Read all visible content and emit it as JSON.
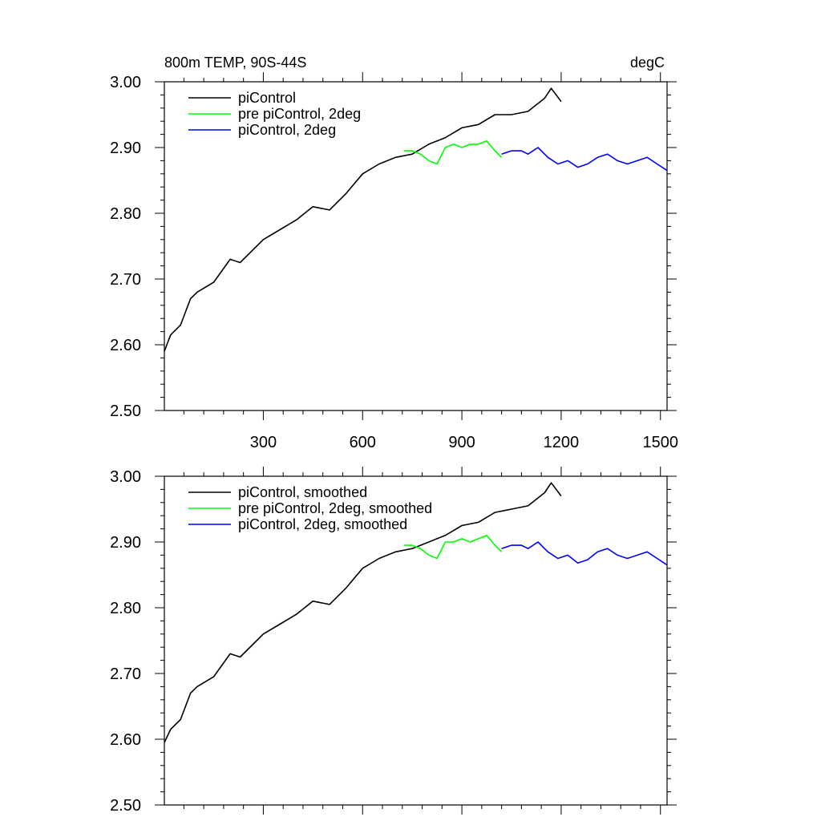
{
  "chart_data": [
    {
      "type": "line",
      "title_left": "800m TEMP, 90S-44S",
      "title_right": "degC",
      "xlim": [
        1,
        1520
      ],
      "ylim": [
        2.5,
        3.0
      ],
      "x_ticks": [
        300,
        600,
        900,
        1200,
        1500
      ],
      "y_ticks": [
        2.5,
        2.6,
        2.7,
        2.8,
        2.9,
        3.0
      ],
      "y_tick_labels": [
        "2.50",
        "2.60",
        "2.70",
        "2.80",
        "2.90",
        "3.00"
      ],
      "x_tick_labels": [
        "300",
        "600",
        "900",
        "1200",
        "1500"
      ],
      "legend": [
        "piControl",
        "pre piControl, 2deg",
        "piControl, 2deg"
      ],
      "series": [
        {
          "name": "piControl",
          "color": "#000000",
          "x": [
            1,
            20,
            50,
            80,
            100,
            150,
            200,
            230,
            280,
            300,
            350,
            400,
            450,
            500,
            550,
            600,
            650,
            700,
            750,
            800,
            850,
            900,
            950,
            1000,
            1050,
            1100,
            1150,
            1170,
            1200
          ],
          "y": [
            2.59,
            2.615,
            2.63,
            2.67,
            2.68,
            2.695,
            2.73,
            2.725,
            2.75,
            2.76,
            2.775,
            2.79,
            2.81,
            2.805,
            2.83,
            2.86,
            2.875,
            2.885,
            2.89,
            2.905,
            2.915,
            2.93,
            2.935,
            2.95,
            2.95,
            2.955,
            2.975,
            2.99,
            2.97
          ]
        },
        {
          "name": "pre piControl, 2deg",
          "color": "#00ff00",
          "x": [
            725,
            750,
            775,
            800,
            825,
            850,
            875,
            900,
            925,
            950,
            975,
            1000,
            1020
          ],
          "y": [
            2.895,
            2.895,
            2.89,
            2.88,
            2.875,
            2.9,
            2.905,
            2.9,
            2.905,
            2.905,
            2.91,
            2.895,
            2.885
          ]
        },
        {
          "name": "piControl, 2deg",
          "color": "#0000ff",
          "x": [
            1020,
            1050,
            1080,
            1100,
            1130,
            1160,
            1190,
            1220,
            1250,
            1280,
            1310,
            1340,
            1370,
            1400,
            1430,
            1460,
            1490,
            1520
          ],
          "y": [
            2.89,
            2.895,
            2.895,
            2.89,
            2.9,
            2.885,
            2.875,
            2.88,
            2.87,
            2.875,
            2.885,
            2.89,
            2.88,
            2.875,
            2.88,
            2.885,
            2.875,
            2.865
          ]
        }
      ]
    },
    {
      "type": "line",
      "xlim": [
        1,
        1520
      ],
      "ylim": [
        2.5,
        3.0
      ],
      "x_ticks": [
        300,
        600,
        900,
        1200,
        1500
      ],
      "y_ticks": [
        2.5,
        2.6,
        2.7,
        2.8,
        2.9,
        3.0
      ],
      "y_tick_labels": [
        "2.50",
        "2.60",
        "2.70",
        "2.80",
        "2.90",
        "3.00"
      ],
      "legend": [
        "piControl, smoothed",
        "pre piControl, 2deg, smoothed",
        "piControl, 2deg, smoothed"
      ],
      "series": [
        {
          "name": "piControl, smoothed",
          "color": "#000000",
          "x": [
            1,
            20,
            50,
            80,
            100,
            150,
            200,
            230,
            280,
            300,
            350,
            400,
            450,
            500,
            550,
            600,
            650,
            700,
            750,
            800,
            850,
            900,
            950,
            1000,
            1050,
            1100,
            1150,
            1170,
            1200
          ],
          "y": [
            2.595,
            2.615,
            2.63,
            2.67,
            2.68,
            2.695,
            2.73,
            2.725,
            2.75,
            2.76,
            2.775,
            2.79,
            2.81,
            2.805,
            2.83,
            2.86,
            2.875,
            2.885,
            2.89,
            2.9,
            2.91,
            2.925,
            2.93,
            2.945,
            2.95,
            2.955,
            2.975,
            2.99,
            2.97
          ]
        },
        {
          "name": "pre piControl, 2deg, smoothed",
          "color": "#00ff00",
          "x": [
            725,
            750,
            775,
            800,
            825,
            850,
            875,
            900,
            925,
            950,
            975,
            1000,
            1020
          ],
          "y": [
            2.895,
            2.895,
            2.89,
            2.88,
            2.875,
            2.9,
            2.9,
            2.905,
            2.9,
            2.905,
            2.91,
            2.895,
            2.885
          ]
        },
        {
          "name": "piControl, 2deg, smoothed",
          "color": "#0000ff",
          "x": [
            1020,
            1050,
            1080,
            1100,
            1130,
            1160,
            1190,
            1220,
            1250,
            1280,
            1310,
            1340,
            1370,
            1400,
            1430,
            1460,
            1490,
            1520
          ],
          "y": [
            2.89,
            2.895,
            2.895,
            2.89,
            2.9,
            2.885,
            2.875,
            2.88,
            2.868,
            2.873,
            2.885,
            2.89,
            2.88,
            2.875,
            2.88,
            2.885,
            2.875,
            2.865
          ]
        }
      ]
    }
  ]
}
